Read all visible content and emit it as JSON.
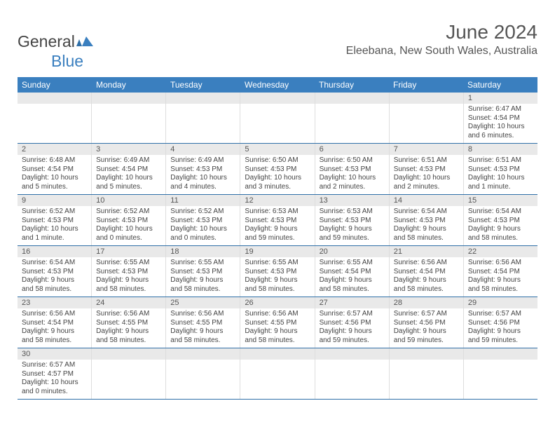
{
  "brand": {
    "name_a": "General",
    "name_b": "Blue"
  },
  "header": {
    "month_title": "June 2024",
    "location": "Eleebana, New South Wales, Australia"
  },
  "colors": {
    "header_bar": "#3a7fbf",
    "header_text": "#ffffff",
    "daynum_bg": "#e9e9e9",
    "week_divider": "#2f6fa8",
    "cell_border": "#dddddd",
    "body_text": "#444444",
    "title_text": "#555555"
  },
  "weekdays": [
    "Sunday",
    "Monday",
    "Tuesday",
    "Wednesday",
    "Thursday",
    "Friday",
    "Saturday"
  ],
  "labels": {
    "sunrise": "Sunrise:",
    "sunset": "Sunset:",
    "daylight": "Daylight:"
  },
  "weeks": [
    [
      {},
      {},
      {},
      {},
      {},
      {},
      {
        "n": "1",
        "sr": "6:47 AM",
        "ss": "4:54 PM",
        "dl": "10 hours and 6 minutes."
      }
    ],
    [
      {
        "n": "2",
        "sr": "6:48 AM",
        "ss": "4:54 PM",
        "dl": "10 hours and 5 minutes."
      },
      {
        "n": "3",
        "sr": "6:49 AM",
        "ss": "4:54 PM",
        "dl": "10 hours and 5 minutes."
      },
      {
        "n": "4",
        "sr": "6:49 AM",
        "ss": "4:53 PM",
        "dl": "10 hours and 4 minutes."
      },
      {
        "n": "5",
        "sr": "6:50 AM",
        "ss": "4:53 PM",
        "dl": "10 hours and 3 minutes."
      },
      {
        "n": "6",
        "sr": "6:50 AM",
        "ss": "4:53 PM",
        "dl": "10 hours and 2 minutes."
      },
      {
        "n": "7",
        "sr": "6:51 AM",
        "ss": "4:53 PM",
        "dl": "10 hours and 2 minutes."
      },
      {
        "n": "8",
        "sr": "6:51 AM",
        "ss": "4:53 PM",
        "dl": "10 hours and 1 minute."
      }
    ],
    [
      {
        "n": "9",
        "sr": "6:52 AM",
        "ss": "4:53 PM",
        "dl": "10 hours and 1 minute."
      },
      {
        "n": "10",
        "sr": "6:52 AM",
        "ss": "4:53 PM",
        "dl": "10 hours and 0 minutes."
      },
      {
        "n": "11",
        "sr": "6:52 AM",
        "ss": "4:53 PM",
        "dl": "10 hours and 0 minutes."
      },
      {
        "n": "12",
        "sr": "6:53 AM",
        "ss": "4:53 PM",
        "dl": "9 hours and 59 minutes."
      },
      {
        "n": "13",
        "sr": "6:53 AM",
        "ss": "4:53 PM",
        "dl": "9 hours and 59 minutes."
      },
      {
        "n": "14",
        "sr": "6:54 AM",
        "ss": "4:53 PM",
        "dl": "9 hours and 58 minutes."
      },
      {
        "n": "15",
        "sr": "6:54 AM",
        "ss": "4:53 PM",
        "dl": "9 hours and 58 minutes."
      }
    ],
    [
      {
        "n": "16",
        "sr": "6:54 AM",
        "ss": "4:53 PM",
        "dl": "9 hours and 58 minutes."
      },
      {
        "n": "17",
        "sr": "6:55 AM",
        "ss": "4:53 PM",
        "dl": "9 hours and 58 minutes."
      },
      {
        "n": "18",
        "sr": "6:55 AM",
        "ss": "4:53 PM",
        "dl": "9 hours and 58 minutes."
      },
      {
        "n": "19",
        "sr": "6:55 AM",
        "ss": "4:53 PM",
        "dl": "9 hours and 58 minutes."
      },
      {
        "n": "20",
        "sr": "6:55 AM",
        "ss": "4:54 PM",
        "dl": "9 hours and 58 minutes."
      },
      {
        "n": "21",
        "sr": "6:56 AM",
        "ss": "4:54 PM",
        "dl": "9 hours and 58 minutes."
      },
      {
        "n": "22",
        "sr": "6:56 AM",
        "ss": "4:54 PM",
        "dl": "9 hours and 58 minutes."
      }
    ],
    [
      {
        "n": "23",
        "sr": "6:56 AM",
        "ss": "4:54 PM",
        "dl": "9 hours and 58 minutes."
      },
      {
        "n": "24",
        "sr": "6:56 AM",
        "ss": "4:55 PM",
        "dl": "9 hours and 58 minutes."
      },
      {
        "n": "25",
        "sr": "6:56 AM",
        "ss": "4:55 PM",
        "dl": "9 hours and 58 minutes."
      },
      {
        "n": "26",
        "sr": "6:56 AM",
        "ss": "4:55 PM",
        "dl": "9 hours and 58 minutes."
      },
      {
        "n": "27",
        "sr": "6:57 AM",
        "ss": "4:56 PM",
        "dl": "9 hours and 59 minutes."
      },
      {
        "n": "28",
        "sr": "6:57 AM",
        "ss": "4:56 PM",
        "dl": "9 hours and 59 minutes."
      },
      {
        "n": "29",
        "sr": "6:57 AM",
        "ss": "4:56 PM",
        "dl": "9 hours and 59 minutes."
      }
    ],
    [
      {
        "n": "30",
        "sr": "6:57 AM",
        "ss": "4:57 PM",
        "dl": "10 hours and 0 minutes."
      },
      {},
      {},
      {},
      {},
      {},
      {}
    ]
  ]
}
